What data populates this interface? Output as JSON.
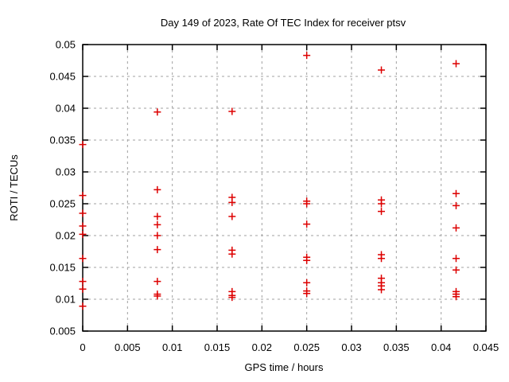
{
  "chart_data": {
    "type": "scatter",
    "title": "Day 149 of 2023, Rate Of TEC Index for receiver ptsv",
    "xlabel": "GPS time / hours",
    "ylabel": "ROTI / TECUs",
    "xlim": [
      0,
      0.045
    ],
    "ylim": [
      0.005,
      0.05
    ],
    "xticks": [
      0,
      0.005,
      0.01,
      0.015,
      0.02,
      0.025,
      0.03,
      0.035,
      0.04,
      0.045
    ],
    "xtick_labels": [
      "0",
      "0.005",
      "0.01",
      "0.015",
      "0.02",
      "0.025",
      "0.03",
      "0.035",
      "0.04",
      "0.045"
    ],
    "yticks": [
      0.005,
      0.01,
      0.015,
      0.02,
      0.025,
      0.03,
      0.035,
      0.04,
      0.045,
      0.05
    ],
    "ytick_labels": [
      "0.005",
      "0.01",
      "0.015",
      "0.02",
      "0.025",
      "0.03",
      "0.035",
      "0.04",
      "0.045",
      "0.05"
    ],
    "grid": true,
    "legend": "none",
    "marker": {
      "shape": "plus",
      "color": "#dd0000",
      "size": 9
    },
    "grid_color": "#a0a0a0",
    "series": [
      {
        "name": "ROTI",
        "points": [
          [
            0,
            0.0343
          ],
          [
            0,
            0.0263
          ],
          [
            0,
            0.0235
          ],
          [
            0,
            0.0215
          ],
          [
            0,
            0.0202
          ],
          [
            0,
            0.0164
          ],
          [
            0,
            0.0128
          ],
          [
            0,
            0.0116
          ],
          [
            0,
            0.0089
          ],
          [
            0.00833,
            0.0394
          ],
          [
            0.00833,
            0.0272
          ],
          [
            0.00833,
            0.023
          ],
          [
            0.00833,
            0.0217
          ],
          [
            0.00833,
            0.02
          ],
          [
            0.00833,
            0.0178
          ],
          [
            0.00833,
            0.0128
          ],
          [
            0.00833,
            0.0108
          ],
          [
            0.00833,
            0.0105
          ],
          [
            0.01667,
            0.0395
          ],
          [
            0.01667,
            0.026
          ],
          [
            0.01667,
            0.0252
          ],
          [
            0.01667,
            0.023
          ],
          [
            0.01667,
            0.0177
          ],
          [
            0.01667,
            0.0171
          ],
          [
            0.01667,
            0.0112
          ],
          [
            0.01667,
            0.0106
          ],
          [
            0.01667,
            0.0103
          ],
          [
            0.025,
            0.0483
          ],
          [
            0.025,
            0.0254
          ],
          [
            0.025,
            0.025
          ],
          [
            0.025,
            0.0218
          ],
          [
            0.025,
            0.0166
          ],
          [
            0.025,
            0.0161
          ],
          [
            0.025,
            0.0126
          ],
          [
            0.025,
            0.0113
          ],
          [
            0.025,
            0.0109
          ],
          [
            0.03333,
            0.046
          ],
          [
            0.03333,
            0.0256
          ],
          [
            0.03333,
            0.025
          ],
          [
            0.03333,
            0.0238
          ],
          [
            0.03333,
            0.017
          ],
          [
            0.03333,
            0.0164
          ],
          [
            0.03333,
            0.0133
          ],
          [
            0.03333,
            0.0126
          ],
          [
            0.03333,
            0.0121
          ],
          [
            0.03333,
            0.0115
          ],
          [
            0.04167,
            0.047
          ],
          [
            0.04167,
            0.0266
          ],
          [
            0.04167,
            0.0247
          ],
          [
            0.04167,
            0.0212
          ],
          [
            0.04167,
            0.0164
          ],
          [
            0.04167,
            0.0146
          ],
          [
            0.04167,
            0.0112
          ],
          [
            0.04167,
            0.0108
          ],
          [
            0.04167,
            0.0104
          ]
        ]
      }
    ]
  }
}
